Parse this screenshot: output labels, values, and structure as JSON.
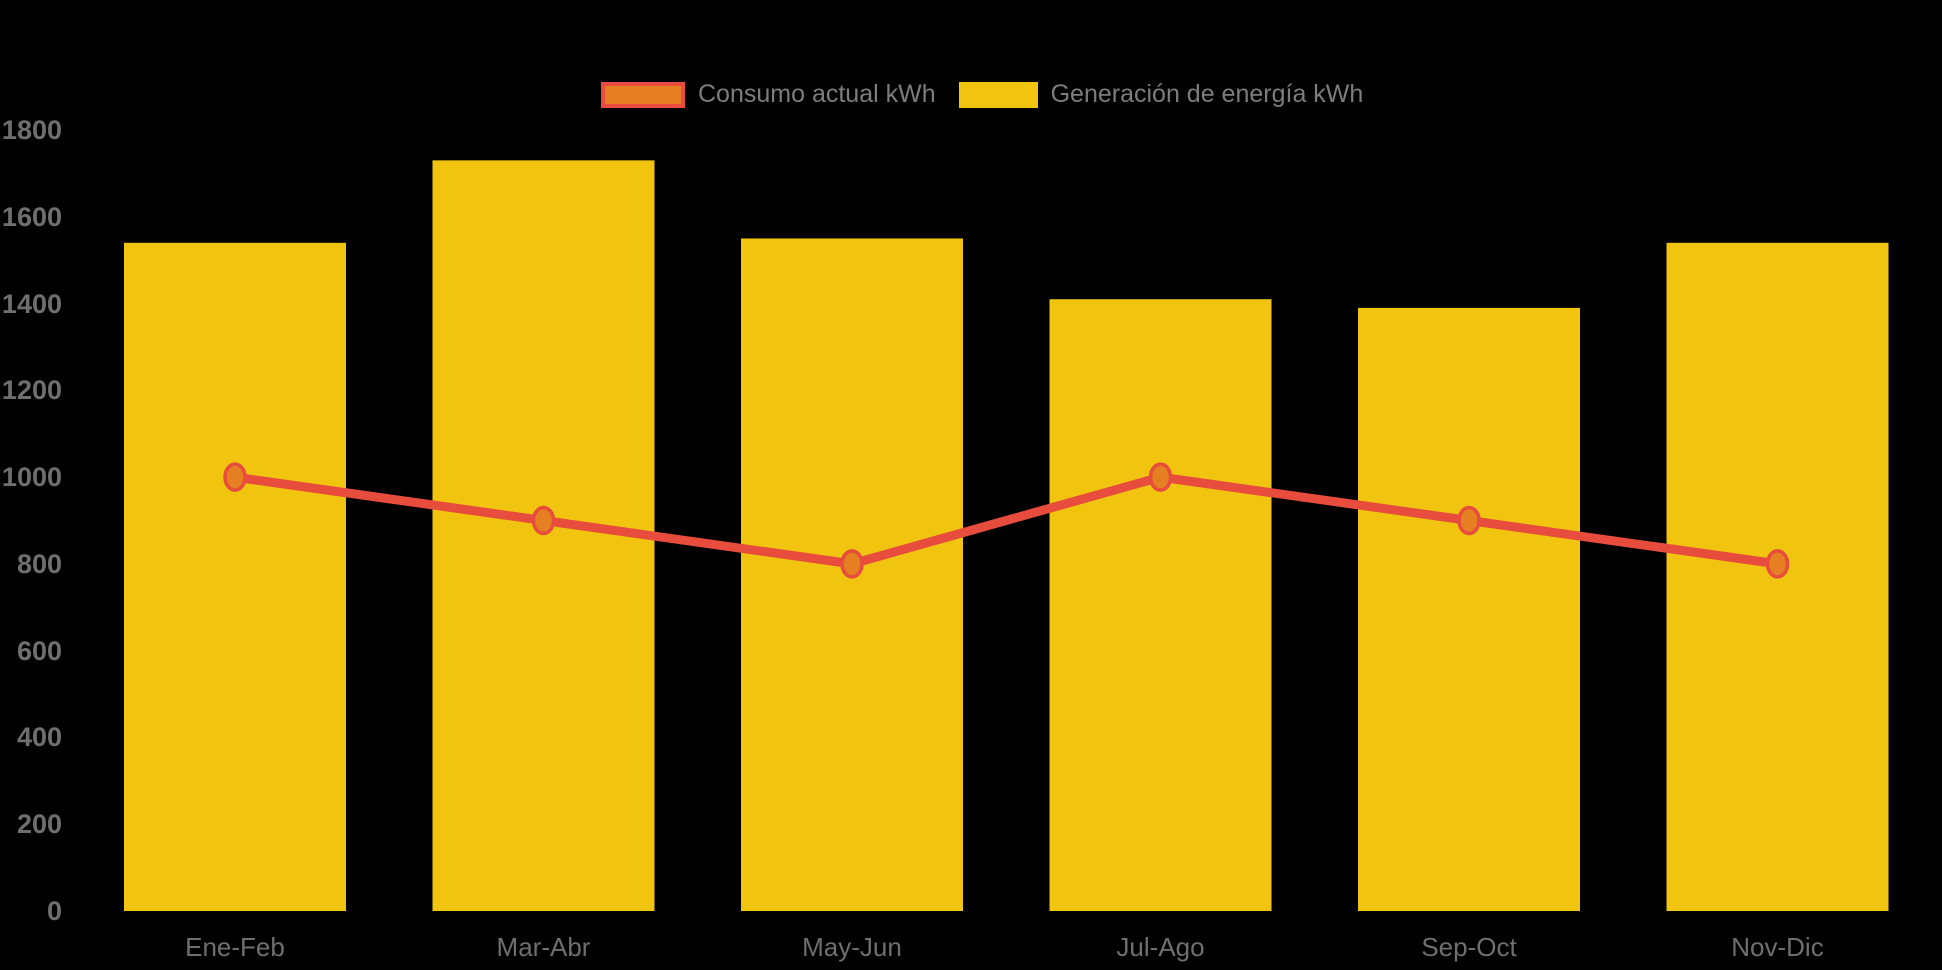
{
  "chart_data": {
    "type": "bar",
    "categories": [
      "Ene-Feb",
      "Mar-Abr",
      "May-Jun",
      "Jul-Ago",
      "Sep-Oct",
      "Nov-Dic"
    ],
    "series": [
      {
        "name": "Consumo actual kWh",
        "render": "line",
        "values": [
          1000,
          900,
          800,
          1000,
          900,
          800
        ],
        "line_color": "#E74C3C",
        "marker_fill": "#E67E22"
      },
      {
        "name": "Generación de energía kWh",
        "render": "bar",
        "values": [
          1540,
          1730,
          1550,
          1410,
          1390,
          1540
        ],
        "bar_color": "#F1C40F"
      }
    ],
    "title": "",
    "xlabel": "",
    "ylabel": "",
    "ylim": [
      0,
      1800
    ],
    "yticks": [
      0,
      200,
      400,
      600,
      800,
      1000,
      1200,
      1400,
      1600,
      1800
    ],
    "grid": false,
    "legend_position": "top-center",
    "background_color": "#000000",
    "tick_text_color": "#6f6f6f",
    "legend_text_color": "#7d7d7d"
  }
}
